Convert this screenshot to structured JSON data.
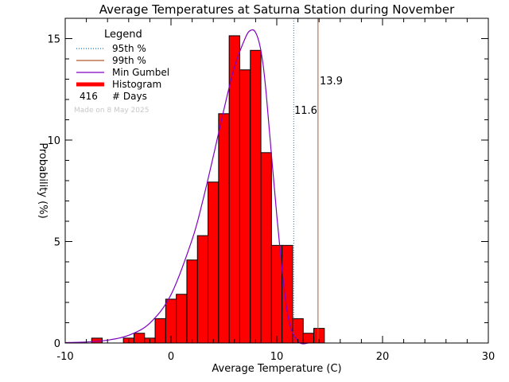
{
  "chart_data": {
    "type": "bar",
    "title": "Average Temperatures at Saturna Station during November",
    "xlabel": "Average Temperature (C)",
    "ylabel": "Probability (%)",
    "xlim": [
      -10,
      30
    ],
    "ylim": [
      0,
      16
    ],
    "x_ticks": [
      -10,
      0,
      10,
      20,
      30
    ],
    "y_ticks": [
      0,
      5,
      10,
      15
    ],
    "bin_width": 1.0,
    "histogram": {
      "name": "Histogram",
      "bin_centers": [
        -7,
        -6,
        -5,
        -4,
        -3,
        -2,
        -1,
        0,
        1,
        2,
        3,
        4,
        5,
        6,
        7,
        8,
        9,
        10,
        11,
        12,
        13,
        14,
        15
      ],
      "values": [
        0.24,
        0,
        0,
        0.24,
        0.48,
        0.24,
        1.2,
        2.16,
        2.4,
        4.09,
        5.29,
        7.93,
        11.3,
        15.14,
        13.46,
        14.42,
        9.38,
        4.81,
        4.81,
        1.2,
        0.48,
        0.72,
        0
      ]
    },
    "gumbel_curve": {
      "name": "Min Gumbel",
      "x": [
        -10,
        -8,
        -6,
        -4,
        -2,
        0,
        2,
        3,
        4,
        5,
        6,
        7,
        7.5,
        8,
        8.5,
        9,
        10,
        11,
        12,
        13
      ],
      "y": [
        0.02,
        0.05,
        0.14,
        0.38,
        0.98,
        2.38,
        5.1,
        7.0,
        9.2,
        11.5,
        13.6,
        15.0,
        15.4,
        15.3,
        14.4,
        12.3,
        6.3,
        1.5,
        0.1,
        0.0
      ]
    },
    "percentile_95": {
      "name": "95th %",
      "value": 11.6,
      "label": "11.6",
      "color": "#1a7bbf"
    },
    "percentile_99": {
      "name": "99th %",
      "value": 13.9,
      "label": "13.9",
      "color": "#b25a28"
    },
    "colors": {
      "histogram": "#ff0000",
      "gumbel": "#8000c0"
    },
    "legend": {
      "title": "Legend",
      "entries": [
        "95th %",
        "99th %",
        "Min Gumbel",
        "Histogram"
      ],
      "days_count": "416",
      "days_label": "# Days",
      "placement": "top-left"
    },
    "made_on": "Made on 8 May 2025"
  }
}
